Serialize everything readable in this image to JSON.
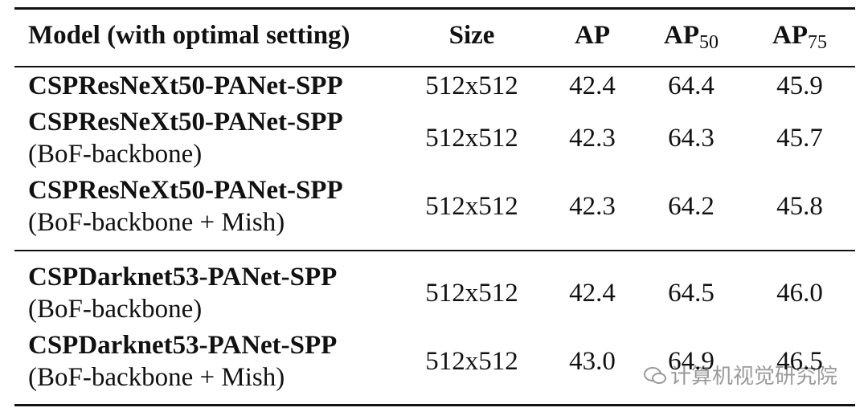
{
  "table": {
    "header": {
      "model": "Model (with optimal setting)",
      "size": "Size",
      "ap": "AP",
      "ap50": {
        "main": "AP",
        "sub": "50"
      },
      "ap75": {
        "main": "AP",
        "sub": "75"
      }
    },
    "rows": [
      {
        "model": "CSPResNeXt50-PANet-SPP",
        "cells": [
          "512x512",
          "42.4",
          "64.4",
          "45.9"
        ]
      },
      {
        "model": "CSPResNeXt50-PANet-SPP",
        "note": "(BoF-backbone)",
        "cells": [
          "512x512",
          "42.3",
          "64.3",
          "45.7"
        ]
      },
      {
        "model": "CSPResNeXt50-PANet-SPP",
        "note": "(BoF-backbone + Mish)",
        "cells": [
          "512x512",
          "42.3",
          "64.2",
          "45.8"
        ]
      },
      {
        "model": "CSPDarknet53-PANet-SPP",
        "note": "(BoF-backbone)",
        "cells": [
          "512x512",
          "42.4",
          "64.5",
          "46.0"
        ]
      },
      {
        "model": "CSPDarknet53-PANet-SPP",
        "note": "(BoF-backbone + Mish)",
        "cells": [
          "512x512",
          "43.0",
          "64.9",
          "46.5"
        ]
      }
    ]
  },
  "watermark": "计算机视觉研究院"
}
